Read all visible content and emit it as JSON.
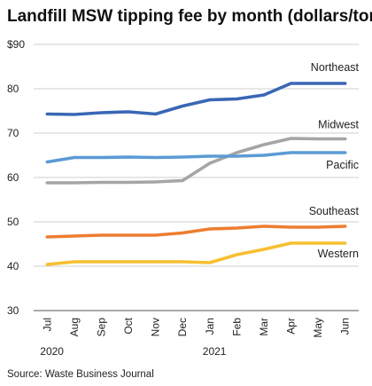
{
  "chart_data": {
    "type": "line",
    "title": "Landfill MSW tipping fee by month (dollars/ton)",
    "source": "Source: Waste Business Journal",
    "ylim": [
      30,
      90
    ],
    "yticks": [
      30,
      40,
      50,
      60,
      70,
      80,
      90
    ],
    "ytick_labels": [
      "30",
      "40",
      "50",
      "60",
      "70",
      "80",
      "$90"
    ],
    "grid": true,
    "categories": [
      "Jul",
      "Aug",
      "Sep",
      "Oct",
      "Nov",
      "Dec",
      "Jan",
      "Feb",
      "Mar",
      "Apr",
      "May",
      "Jun"
    ],
    "year_labels": [
      {
        "label": "2020",
        "category_index": 0
      },
      {
        "label": "2021",
        "category_index": 6
      }
    ],
    "series": [
      {
        "name": "Northeast",
        "color": "#3a67b5",
        "values": [
          74.3,
          74.2,
          74.6,
          74.8,
          74.3,
          76.1,
          77.5,
          77.7,
          78.6,
          81.2,
          81.2,
          81.2
        ]
      },
      {
        "name": "Midwest",
        "color": "#a5a5a5",
        "values": [
          58.8,
          58.8,
          58.9,
          58.9,
          59.0,
          59.3,
          63.2,
          65.6,
          67.4,
          68.8,
          68.7,
          68.7
        ]
      },
      {
        "name": "Pacific",
        "color": "#5b9bd5",
        "values": [
          63.5,
          64.5,
          64.5,
          64.6,
          64.5,
          64.6,
          64.8,
          64.8,
          65.0,
          65.6,
          65.6,
          65.6
        ]
      },
      {
        "name": "Southeast",
        "color": "#ed7d31",
        "values": [
          46.6,
          46.8,
          47.0,
          47.0,
          47.0,
          47.5,
          48.4,
          48.6,
          49.0,
          48.8,
          48.8,
          49.0
        ]
      },
      {
        "name": "Western",
        "color": "#f7bf2f",
        "values": [
          40.4,
          41.0,
          41.0,
          41.0,
          41.0,
          41.0,
          40.8,
          42.6,
          43.8,
          45.2,
          45.2,
          45.2
        ]
      }
    ]
  }
}
